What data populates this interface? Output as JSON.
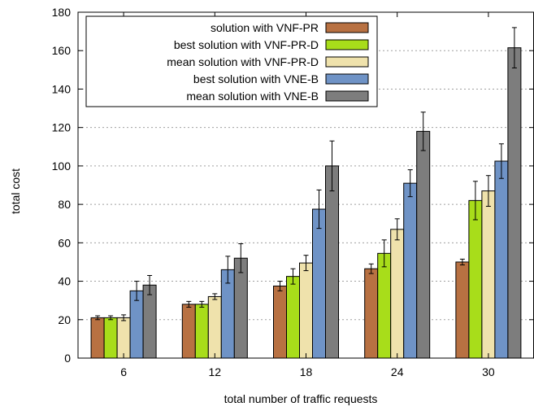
{
  "chart_data": {
    "type": "bar",
    "xlabel": "total number of traffic requests",
    "ylabel": "total cost",
    "categories": [
      "6",
      "12",
      "18",
      "24",
      "30"
    ],
    "ylim": [
      0,
      180
    ],
    "yticks": [
      0,
      20,
      40,
      60,
      80,
      100,
      120,
      140,
      160,
      180
    ],
    "grid": "horizontal dotted",
    "legend_position": "top-left",
    "series": [
      {
        "name": "solution with VNF-PR",
        "color": "#b87142",
        "values": [
          21,
          28,
          37.5,
          46.5,
          50
        ],
        "err": [
          1,
          1.5,
          2.5,
          2.5,
          1.5
        ]
      },
      {
        "name": "best solution with VNF-PR-D",
        "color": "#a8dd1a",
        "values": [
          21,
          28,
          42.5,
          54.5,
          82
        ],
        "err": [
          1,
          1.5,
          4,
          7,
          10
        ]
      },
      {
        "name": "mean solution with VNF-PR-D",
        "color": "#efe2ac",
        "values": [
          21,
          32,
          49.5,
          67,
          87
        ],
        "err": [
          1.5,
          1.5,
          4,
          5.5,
          8
        ]
      },
      {
        "name": "best solution with VNE-B",
        "color": "#6f93c6",
        "values": [
          35,
          46,
          77.5,
          91,
          102.5
        ],
        "err": [
          5,
          7,
          10,
          7,
          9
        ]
      },
      {
        "name": "mean solution with VNE-B",
        "color": "#7d7d7d",
        "values": [
          38,
          52,
          100,
          118,
          161.5
        ],
        "err": [
          5,
          7.5,
          13,
          10,
          10.5
        ]
      }
    ]
  }
}
